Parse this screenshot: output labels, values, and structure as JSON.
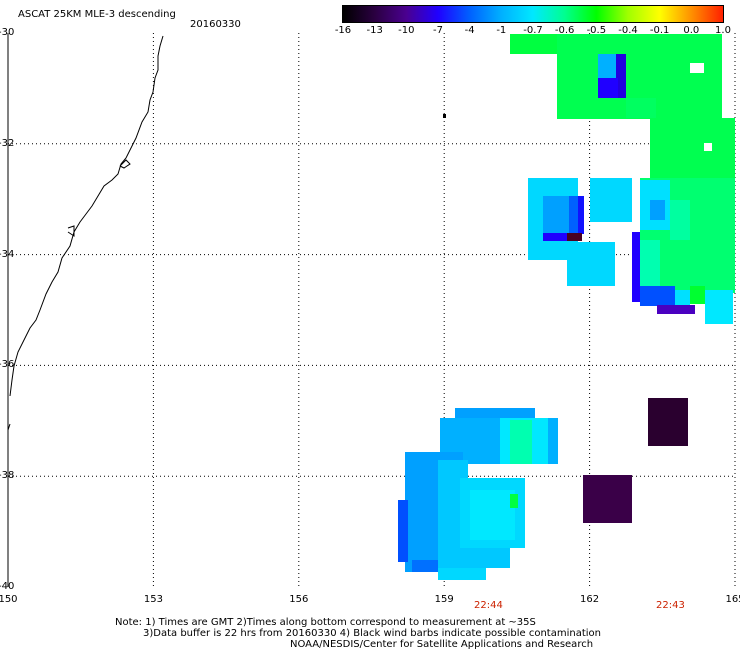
{
  "header": {
    "title": "ASCAT 25KM MLE-3 descending",
    "date": "20160330"
  },
  "colorbar": {
    "tick_labels": [
      "-16",
      "-13",
      "-10",
      "-7",
      "-4",
      "-1",
      "-0.7",
      "-0.6",
      "-0.5",
      "-0.4",
      "-0.1",
      "0.0",
      "1.0"
    ],
    "colors": [
      "#000000",
      "#2a0040",
      "#4a0090",
      "#2000ff",
      "#0060ff",
      "#00b0ff",
      "#00e8ff",
      "#00ff90",
      "#00ff00",
      "#a0ff00",
      "#ffff00",
      "#ff9000",
      "#ff2000"
    ]
  },
  "map": {
    "lon_labels": [
      "150",
      "153",
      "156",
      "159",
      "162",
      "165"
    ],
    "lat_labels": [
      "-30",
      "-32",
      "-34",
      "-36",
      "-38",
      "-40"
    ],
    "lon_range": [
      150,
      165
    ],
    "lat_range": [
      -40,
      -30
    ],
    "grid": "dotted",
    "coastline_color": "#000000"
  },
  "pass_times": [
    {
      "label": "22:44",
      "color": "#cc2200"
    },
    {
      "label": "22:43",
      "color": "#cc2200"
    }
  ],
  "notes": {
    "line1": "Note: 1) Times are GMT 2)Times along bottom correspond to measurement at ~35S",
    "line2": "3)Data buffer is 22 hrs from 20160330 4) Black wind barbs indicate possible contamination",
    "line3": "NOAA/NESDIS/Center for Satellite Applications and Research"
  }
}
